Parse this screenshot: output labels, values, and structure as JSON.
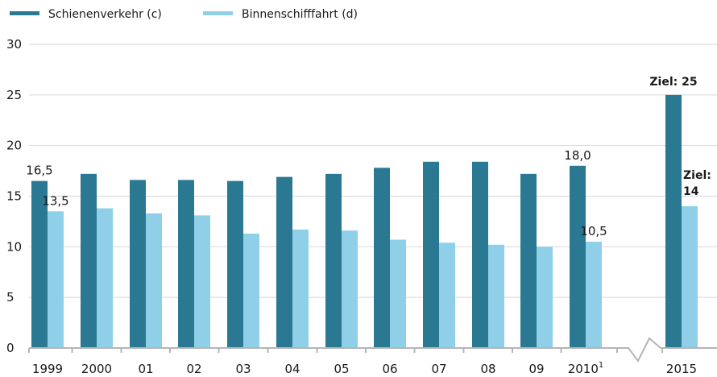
{
  "chart_data": {
    "type": "bar",
    "title": "",
    "xlabel": "",
    "ylabel": "",
    "ylim": [
      0,
      30
    ],
    "yticks": [
      "0",
      "5",
      "10",
      "15",
      "20",
      "25",
      "30"
    ],
    "grid": true,
    "legend_position": "top-left",
    "categories": [
      "1999",
      "2000",
      "01",
      "02",
      "03",
      "04",
      "05",
      "06",
      "07",
      "08",
      "09",
      "2010",
      "2015"
    ],
    "category_superscripts": {
      "2010": "1"
    },
    "axis_break_after": "2010",
    "series": [
      {
        "name": "Schienenverkehr (c)",
        "color": "#2a7891",
        "values": [
          16.5,
          17.2,
          16.6,
          16.6,
          16.5,
          16.9,
          17.2,
          17.8,
          18.4,
          18.4,
          17.2,
          18.0,
          25
        ]
      },
      {
        "name": "Binnenschifffahrt (d)",
        "color": "#8fd0e8",
        "values": [
          13.5,
          13.8,
          13.3,
          13.1,
          11.3,
          11.7,
          11.6,
          10.7,
          10.4,
          10.2,
          10.0,
          10.5,
          14
        ]
      }
    ],
    "data_labels": [
      {
        "series": 0,
        "category": "1999",
        "text": "16,5"
      },
      {
        "series": 1,
        "category": "1999",
        "text": "13,5"
      },
      {
        "series": 0,
        "category": "2010",
        "text": "18,0"
      },
      {
        "series": 1,
        "category": "2010",
        "text": "10,5"
      }
    ],
    "target_labels": [
      {
        "series": 0,
        "category": "2015",
        "line1": "Ziel: 25",
        "line2": ""
      },
      {
        "series": 1,
        "category": "2015",
        "line1": "Ziel:",
        "line2": "14"
      }
    ]
  }
}
